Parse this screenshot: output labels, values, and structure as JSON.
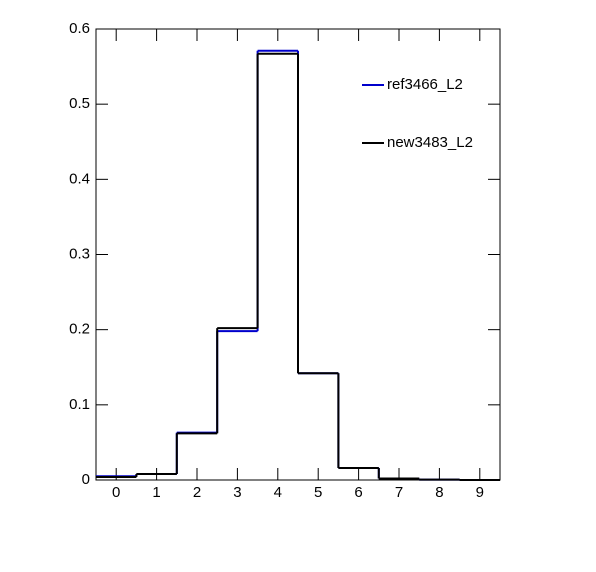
{
  "chart_data": {
    "type": "histogram",
    "bins": [
      -0.5,
      0.5,
      1.5,
      2.5,
      3.5,
      4.5,
      5.5,
      6.5,
      7.5,
      8.5,
      9.5
    ],
    "series": [
      {
        "name": "ref3466_L2",
        "color": "#0000cc",
        "values": [
          0.005,
          0.008,
          0.063,
          0.198,
          0.571,
          0.142,
          0.016,
          0.002,
          0.0005,
          0
        ]
      },
      {
        "name": "new3483_L2",
        "color": "#000000",
        "values": [
          0.004,
          0.008,
          0.062,
          0.202,
          0.567,
          0.142,
          0.016,
          0.002,
          0.0005,
          0
        ]
      }
    ],
    "xlim": [
      -0.5,
      9.5
    ],
    "xticks": [
      0,
      1,
      2,
      3,
      4,
      5,
      6,
      7,
      8,
      9
    ],
    "ylim": [
      0,
      0.6
    ],
    "yticks": [
      0,
      0.1,
      0.2,
      0.3,
      0.4,
      0.5,
      0.6
    ],
    "legend": "top-right"
  }
}
